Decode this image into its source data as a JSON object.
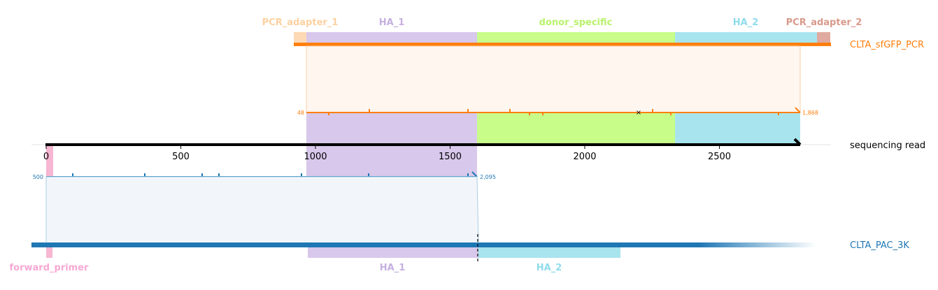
{
  "colors": {
    "pcr_adapter_1": "#fdd9b5",
    "ha_1": "#d8c8eb",
    "donor_specific": "#c8fd8a",
    "ha_2": "#a8e4ee",
    "pcr_adapter_2": "#e0aaa0",
    "pcr_line": "#ff7f0e",
    "pac_line": "#1f77b4",
    "forward_primer": "#f7b6d2",
    "read_line": "#000000",
    "pcr_label_1": "#fdd0a0",
    "ha_label": "#c5b0e0",
    "donor_label": "#b9f26b",
    "ha2_label": "#8edcec",
    "pcr_label_2": "#d99a8c",
    "fwd_label": "#f7a8d4"
  },
  "tracks": {
    "pcr": {
      "label": "CLTA_sfGFP_PCR",
      "start_label": "48",
      "end_label": "1,868"
    },
    "read": {
      "label": "sequencing read"
    },
    "pac": {
      "label": "CLTA_PAC_3K",
      "start_label": "500",
      "end_label": "2,095"
    }
  },
  "features_top": [
    {
      "name": "PCR_adapter_1",
      "color_key": "pcr_adapter_1",
      "label_color_key": "pcr_label_1"
    },
    {
      "name": "HA_1",
      "color_key": "ha_1",
      "label_color_key": "ha_label"
    },
    {
      "name": "donor_specific",
      "color_key": "donor_specific",
      "label_color_key": "donor_label"
    },
    {
      "name": "HA_2",
      "color_key": "ha_2",
      "label_color_key": "ha2_label"
    },
    {
      "name": "PCR_adapter_2",
      "color_key": "pcr_adapter_2",
      "label_color_key": "pcr_label_2"
    }
  ],
  "features_bottom": [
    {
      "name": "forward_primer",
      "color_key": "forward_primer",
      "label_color_key": "fwd_label"
    },
    {
      "name": "HA_1",
      "color_key": "ha_1",
      "label_color_key": "ha_label"
    },
    {
      "name": "HA_2",
      "color_key": "ha_2",
      "label_color_key": "ha2_label"
    }
  ],
  "axis": {
    "ticks": [
      {
        "value": 0,
        "label": "0"
      },
      {
        "value": 500,
        "label": "500"
      },
      {
        "value": 1000,
        "label": "1000"
      },
      {
        "value": 1500,
        "label": "1500"
      },
      {
        "value": 2000,
        "label": "2000"
      },
      {
        "value": 2500,
        "label": "2500"
      }
    ],
    "read_length": 2800
  },
  "mismatch_marker": "×"
}
